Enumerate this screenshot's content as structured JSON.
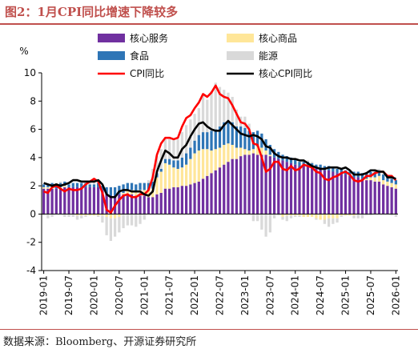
{
  "title": "图2：1月CPI同比增速下降较多",
  "source": "数据来源：Bloomberg、开源证券研究所",
  "chart_data": {
    "type": "bar+line",
    "ylabel": "%",
    "ylim": [
      -4,
      10
    ],
    "yticks": [
      -4,
      -2,
      0,
      2,
      4,
      6,
      8,
      10
    ],
    "xticks": [
      "2019-01",
      "2019-07",
      "2020-01",
      "2020-07",
      "2021-01",
      "2021-07",
      "2022-01",
      "2022-07",
      "2023-01",
      "2023-07",
      "2024-01",
      "2024-07",
      "2025-01",
      "2025-07",
      "2026-01"
    ],
    "legend": [
      "核心服务",
      "核心商品",
      "食品",
      "能源",
      "CPI同比",
      "核心CPI同比"
    ],
    "colors": {
      "core_services": "#7030a0",
      "core_goods": "#ffe699",
      "food": "#2e75b6",
      "energy": "#d9d9d9",
      "cpi": "#ff0000",
      "core_cpi": "#000000"
    },
    "months": [
      "2019-01",
      "2019-02",
      "2019-03",
      "2019-04",
      "2019-05",
      "2019-06",
      "2019-07",
      "2019-08",
      "2019-09",
      "2019-10",
      "2019-11",
      "2019-12",
      "2020-01",
      "2020-02",
      "2020-03",
      "2020-04",
      "2020-05",
      "2020-06",
      "2020-07",
      "2020-08",
      "2020-09",
      "2020-10",
      "2020-11",
      "2020-12",
      "2021-01",
      "2021-02",
      "2021-03",
      "2021-04",
      "2021-05",
      "2021-06",
      "2021-07",
      "2021-08",
      "2021-09",
      "2021-10",
      "2021-11",
      "2021-12",
      "2022-01",
      "2022-02",
      "2022-03",
      "2022-04",
      "2022-05",
      "2022-06",
      "2022-07",
      "2022-08",
      "2022-09",
      "2022-10",
      "2022-11",
      "2022-12",
      "2023-01",
      "2023-02",
      "2023-03",
      "2023-04",
      "2023-05",
      "2023-06",
      "2023-07",
      "2023-08",
      "2023-09",
      "2023-10",
      "2023-11",
      "2023-12",
      "2024-01",
      "2024-02",
      "2024-03",
      "2024-04",
      "2024-05",
      "2024-06",
      "2024-07",
      "2024-08",
      "2024-09",
      "2024-10",
      "2024-11",
      "2024-12",
      "2025-01",
      "2025-02",
      "2025-03",
      "2025-04",
      "2025-05",
      "2025-06",
      "2025-07",
      "2025-08",
      "2025-09",
      "2025-10",
      "2025-11",
      "2025-12",
      "2026-01"
    ],
    "series": [
      {
        "name": "核心服务",
        "key": "core_services",
        "values": [
          1.8,
          1.8,
          1.8,
          1.8,
          1.8,
          1.9,
          1.9,
          1.9,
          1.9,
          1.9,
          1.9,
          1.9,
          1.9,
          1.9,
          1.7,
          1.4,
          1.3,
          1.3,
          1.4,
          1.4,
          1.4,
          1.4,
          1.3,
          1.3,
          1.3,
          1.2,
          1.2,
          1.4,
          1.5,
          1.8,
          1.8,
          1.9,
          1.9,
          2.0,
          2.0,
          2.1,
          2.2,
          2.3,
          2.5,
          2.7,
          2.9,
          3.1,
          3.3,
          3.5,
          3.7,
          3.9,
          3.9,
          4.1,
          4.2,
          4.2,
          4.3,
          4.2,
          4.2,
          4.2,
          4.1,
          4.0,
          3.9,
          3.8,
          3.7,
          3.6,
          3.5,
          3.4,
          3.4,
          3.4,
          3.3,
          3.2,
          3.2,
          3.1,
          3.1,
          3.0,
          2.9,
          2.9,
          2.8,
          2.7,
          2.6,
          2.6,
          2.5,
          2.4,
          2.4,
          2.3,
          2.3,
          2.1,
          2.0,
          1.9,
          1.8
        ]
      },
      {
        "name": "核心商品",
        "key": "core_goods",
        "values": [
          0.1,
          0.1,
          0.1,
          0.0,
          0.1,
          0.1,
          0.0,
          0.0,
          -0.1,
          -0.1,
          -0.1,
          -0.1,
          -0.1,
          -0.1,
          -0.1,
          -0.2,
          -0.3,
          -0.3,
          -0.2,
          0.1,
          0.3,
          0.3,
          0.3,
          0.4,
          0.4,
          0.5,
          0.6,
          1.2,
          1.5,
          1.8,
          1.7,
          1.4,
          1.3,
          1.3,
          1.5,
          1.8,
          2.1,
          2.2,
          2.1,
          1.9,
          1.6,
          1.5,
          1.4,
          1.4,
          1.3,
          1.0,
          0.8,
          0.6,
          0.4,
          0.3,
          0.3,
          0.6,
          0.5,
          0.3,
          0.1,
          0.0,
          0.0,
          -0.2,
          -0.1,
          -0.1,
          -0.1,
          -0.1,
          -0.2,
          -0.2,
          -0.2,
          -0.3,
          -0.4,
          -0.4,
          -0.3,
          -0.3,
          -0.3,
          -0.1,
          -0.1,
          -0.1,
          -0.1,
          0.0,
          0.0,
          0.1,
          0.2,
          0.3,
          0.4,
          0.3,
          0.3,
          0.3,
          0.3
        ]
      },
      {
        "name": "食品",
        "key": "food",
        "values": [
          0.2,
          0.2,
          0.3,
          0.3,
          0.3,
          0.3,
          0.2,
          0.3,
          0.3,
          0.3,
          0.3,
          0.2,
          0.2,
          0.3,
          0.3,
          0.5,
          0.6,
          0.6,
          0.6,
          0.6,
          0.5,
          0.5,
          0.5,
          0.5,
          0.5,
          0.5,
          0.5,
          0.3,
          0.2,
          0.3,
          0.4,
          0.5,
          0.6,
          0.7,
          0.8,
          0.8,
          0.9,
          1.1,
          1.2,
          1.2,
          1.4,
          1.4,
          1.5,
          1.6,
          1.6,
          1.6,
          1.5,
          1.5,
          1.5,
          1.4,
          1.2,
          1.1,
          1.0,
          0.8,
          0.7,
          0.6,
          0.5,
          0.4,
          0.4,
          0.4,
          0.4,
          0.3,
          0.3,
          0.3,
          0.3,
          0.3,
          0.3,
          0.3,
          0.3,
          0.3,
          0.3,
          0.3,
          0.3,
          0.3,
          0.4,
          0.4,
          0.4,
          0.4,
          0.4,
          0.4,
          0.4,
          0.4,
          0.4,
          0.3,
          0.3
        ]
      },
      {
        "name": "能源",
        "key": "energy",
        "values": [
          -0.1,
          -0.3,
          -0.2,
          0.1,
          0.1,
          -0.2,
          -0.2,
          -0.2,
          -0.3,
          -0.2,
          -0.1,
          0.2,
          0.3,
          -0.1,
          -0.5,
          -1.3,
          -1.6,
          -1.3,
          -1.1,
          -1.0,
          -0.8,
          -0.8,
          -0.9,
          -0.7,
          -0.4,
          0.2,
          0.9,
          1.2,
          1.4,
          1.4,
          1.4,
          1.5,
          1.5,
          1.8,
          2.0,
          2.0,
          1.9,
          1.9,
          2.7,
          2.3,
          2.8,
          3.3,
          2.8,
          2.3,
          2.0,
          1.8,
          1.2,
          0.7,
          0.8,
          0.5,
          -0.5,
          -0.5,
          -1.1,
          -1.6,
          -1.3,
          -0.3,
          -0.1,
          -0.2,
          -0.4,
          -0.2,
          -0.1,
          -0.1,
          0.1,
          0.1,
          0.1,
          -0.1,
          0.0,
          -0.3,
          -0.6,
          -0.4,
          -0.3,
          -0.1,
          0.0,
          0.0,
          -0.2,
          -0.3,
          -0.3,
          -0.1,
          -0.1,
          0.0,
          0.1,
          0.1,
          0.0,
          -0.1,
          -0.2
        ]
      },
      {
        "name": "CPI同比",
        "key": "cpi",
        "values": [
          1.6,
          1.5,
          1.9,
          2.0,
          1.8,
          1.6,
          1.8,
          1.7,
          1.7,
          1.8,
          2.1,
          2.3,
          2.5,
          2.3,
          1.5,
          0.3,
          0.1,
          0.6,
          1.0,
          1.3,
          1.4,
          1.2,
          1.2,
          1.4,
          1.4,
          1.7,
          2.6,
          4.2,
          5.0,
          5.4,
          5.4,
          5.3,
          5.4,
          6.2,
          6.8,
          7.0,
          7.5,
          7.9,
          8.5,
          8.3,
          8.6,
          9.1,
          8.5,
          8.3,
          8.2,
          7.7,
          7.1,
          6.5,
          6.4,
          6.0,
          5.0,
          4.9,
          4.0,
          3.0,
          3.2,
          3.7,
          3.7,
          3.2,
          3.1,
          3.4,
          3.1,
          3.2,
          3.5,
          3.4,
          3.3,
          3.0,
          2.9,
          2.5,
          2.4,
          2.6,
          2.7,
          2.9,
          3.0,
          2.8,
          2.4,
          2.3,
          2.4,
          2.7,
          2.7,
          2.9,
          3.0,
          3.0,
          2.7,
          2.7,
          2.4
        ]
      },
      {
        "name": "核心CPI同比",
        "key": "core_cpi",
        "values": [
          2.2,
          2.1,
          2.0,
          2.1,
          2.0,
          2.1,
          2.2,
          2.4,
          2.4,
          2.3,
          2.3,
          2.3,
          2.3,
          2.4,
          2.1,
          1.4,
          1.2,
          1.2,
          1.6,
          1.7,
          1.7,
          1.6,
          1.6,
          1.6,
          1.4,
          1.3,
          1.6,
          3.0,
          3.8,
          4.5,
          4.3,
          4.0,
          4.0,
          4.6,
          4.9,
          5.5,
          6.0,
          6.4,
          6.5,
          6.2,
          6.0,
          5.9,
          5.9,
          6.3,
          6.6,
          6.3,
          6.0,
          5.7,
          5.6,
          5.5,
          5.6,
          5.5,
          5.3,
          4.8,
          4.7,
          4.3,
          4.1,
          4.0,
          4.0,
          3.9,
          3.9,
          3.8,
          3.8,
          3.6,
          3.4,
          3.3,
          3.2,
          3.2,
          3.3,
          3.3,
          3.3,
          3.2,
          3.3,
          3.1,
          2.8,
          2.8,
          2.8,
          2.9,
          3.1,
          3.1,
          3.0,
          3.0,
          2.6,
          2.6,
          2.5
        ]
      }
    ]
  }
}
